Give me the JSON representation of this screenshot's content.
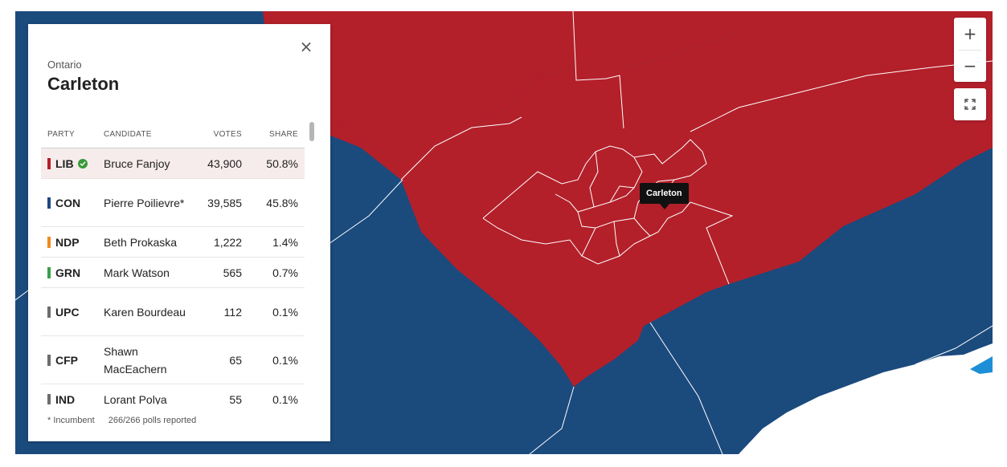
{
  "panel": {
    "province": "Ontario",
    "riding": "Carleton",
    "close_label": "×",
    "headers": {
      "party": "PARTY",
      "candidate": "CANDIDATE",
      "votes": "VOTES",
      "share": "SHARE"
    },
    "rows": [
      {
        "party": "LIB",
        "candidate": "Bruce Fanjoy",
        "votes": "43,900",
        "share": "50.8%",
        "color": "#b3202a",
        "winner": true
      },
      {
        "party": "CON",
        "candidate": "Pierre Poilievre*",
        "votes": "39,585",
        "share": "45.8%",
        "color": "#1b4a7d",
        "winner": false
      },
      {
        "party": "NDP",
        "candidate": "Beth Prokaska",
        "votes": "1,222",
        "share": "1.4%",
        "color": "#f08a1c",
        "winner": false
      },
      {
        "party": "GRN",
        "candidate": "Mark Watson",
        "votes": "565",
        "share": "0.7%",
        "color": "#3aa048",
        "winner": false
      },
      {
        "party": "UPC",
        "candidate": "Karen Bourdeau",
        "votes": "112",
        "share": "0.1%",
        "color": "#6d6d6d",
        "winner": false
      },
      {
        "party": "CFP",
        "candidate": "Shawn MacEachern",
        "votes": "65",
        "share": "0.1%",
        "color": "#6d6d6d",
        "winner": false
      },
      {
        "party": "IND",
        "candidate": "Lorant Polya",
        "votes": "55",
        "share": "0.1%",
        "color": "#6d6d6d",
        "winner": false
      }
    ],
    "footer": {
      "incumbent_note": "* Incumbent",
      "polls_reported": "266/266 polls reported"
    }
  },
  "tooltip": {
    "label": "Carleton"
  },
  "controls": {
    "zoom_in": "+",
    "zoom_out": "−"
  },
  "map": {
    "colors": {
      "liberal": "#b3202a",
      "conservative": "#1b4a7d",
      "water": "#ffffff",
      "bloc": "#1e8fd6",
      "border": "#ffffff"
    }
  }
}
